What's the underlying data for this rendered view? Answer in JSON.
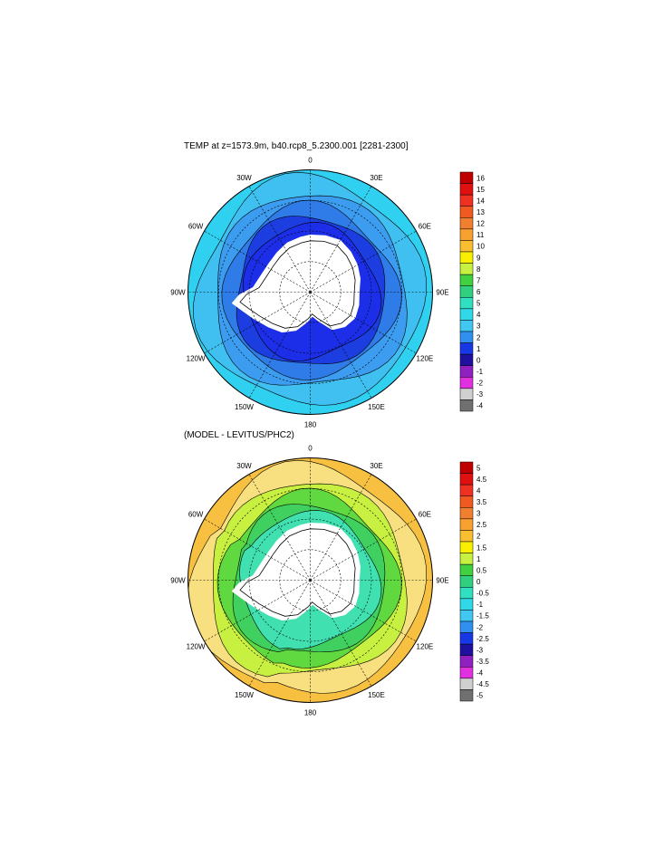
{
  "panels": [
    {
      "title": "TEMP at z=1573.9m, b40.rcp8_5.2300.001 [2281-2300]",
      "lon_labels": [
        "0",
        "30E",
        "60E",
        "90E",
        "120E",
        "150E",
        "180",
        "150W",
        "120W",
        "90W",
        "60W",
        "30W"
      ],
      "colorbar": {
        "labels": [
          "16",
          "15",
          "14",
          "13",
          "12",
          "11",
          "10",
          "9",
          "8",
          "7",
          "6",
          "5",
          "4",
          "3",
          "2",
          "1",
          "0",
          "-1",
          "-2",
          "-3",
          "-4"
        ],
        "colors": [
          "#c00000",
          "#e01010",
          "#f03020",
          "#f05a20",
          "#f08030",
          "#f8a030",
          "#f8c030",
          "#f8f000",
          "#c8f040",
          "#40d040",
          "#30d080",
          "#30e0c0",
          "#30d8e8",
          "#40c8f0",
          "#3090f0",
          "#1838e8",
          "#2010a0",
          "#9020c0",
          "#e030e0",
          "#d0d0d0",
          "#707070"
        ],
        "range": [
          -4,
          16
        ]
      },
      "colors": {
        "rings": [
          "#30d0f0",
          "#40c0f0",
          "#3c9cf0",
          "#2f7ce8",
          "#1c3ee0",
          "#1c2ee8"
        ]
      }
    },
    {
      "title": "(MODEL - LEVITUS/PHC2)",
      "lon_labels": [
        "0",
        "30E",
        "60E",
        "90E",
        "120E",
        "150E",
        "180",
        "150W",
        "120W",
        "90W",
        "60W",
        "30W"
      ],
      "colorbar": {
        "labels": [
          "5",
          "4.5",
          "4",
          "3.5",
          "3",
          "2.5",
          "2",
          "1.5",
          "1",
          "0.5",
          "0",
          "-0.5",
          "-1",
          "-1.5",
          "-2",
          "-2.5",
          "-3",
          "-3.5",
          "-4",
          "-4.5",
          "-5"
        ],
        "colors": [
          "#c00000",
          "#e01010",
          "#f03020",
          "#f05a20",
          "#f08030",
          "#f8a030",
          "#f8c030",
          "#f8f000",
          "#c8f040",
          "#40d040",
          "#30d080",
          "#30e0c0",
          "#30d8e8",
          "#40c8f0",
          "#3090f0",
          "#1838e8",
          "#2010a0",
          "#9020c0",
          "#e030e0",
          "#d0d0d0",
          "#707070"
        ],
        "range": [
          -5,
          5
        ]
      },
      "colors": {
        "rings": [
          "#f8c040",
          "#f8e080",
          "#c8f040",
          "#60d840",
          "#40d060",
          "#40e0b0"
        ]
      }
    }
  ]
}
